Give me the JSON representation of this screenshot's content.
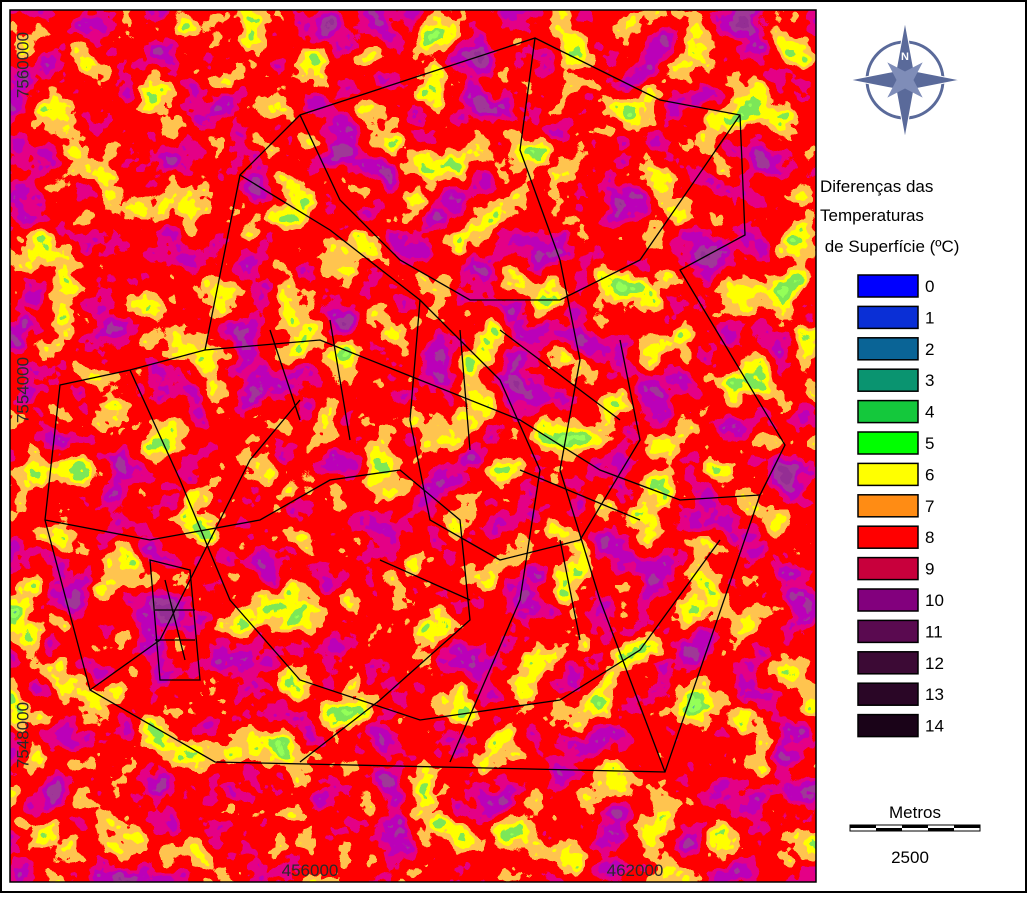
{
  "map": {
    "y_labels": [
      7560000,
      7554000,
      7548000
    ],
    "x_labels": [
      456000,
      462000
    ],
    "compass": "N",
    "legend": {
      "title": [
        "Diferenças das",
        "Temperaturas",
        " de Superfície (ºC)"
      ],
      "items": [
        {
          "value": 0,
          "color": "#0000ff"
        },
        {
          "value": 1,
          "color": "#0a2fd6"
        },
        {
          "value": 2,
          "color": "#0a6496"
        },
        {
          "value": 3,
          "color": "#0a9470"
        },
        {
          "value": 4,
          "color": "#14c83c"
        },
        {
          "value": 5,
          "color": "#00ff00"
        },
        {
          "value": 6,
          "color": "#ffff00"
        },
        {
          "value": 7,
          "color": "#ff8c14"
        },
        {
          "value": 8,
          "color": "#ff0000"
        },
        {
          "value": 9,
          "color": "#c8003c"
        },
        {
          "value": 10,
          "color": "#82007d"
        },
        {
          "value": 11,
          "color": "#5a0a50"
        },
        {
          "value": 12,
          "color": "#3c0a35"
        },
        {
          "value": 13,
          "color": "#2a0626"
        },
        {
          "value": 14,
          "color": "#1a0318"
        }
      ]
    },
    "scale": {
      "unit": "Metros",
      "length": 2500
    }
  }
}
